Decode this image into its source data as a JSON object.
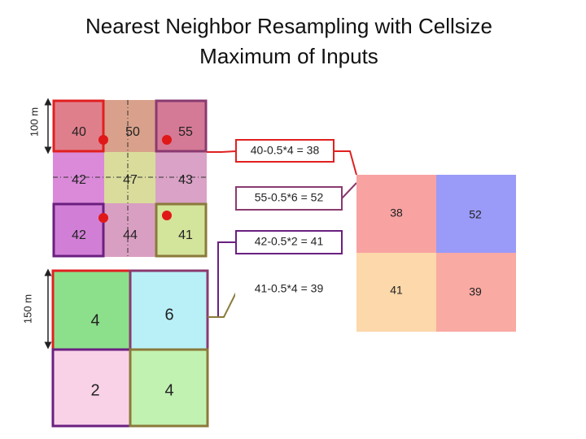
{
  "title": "Nearest Neighbor Resampling with Cellsize Maximum of Inputs",
  "input_grid": {
    "scale_label": "100 m",
    "cells": [
      [
        40,
        50,
        55
      ],
      [
        42,
        47,
        43
      ],
      [
        42,
        44,
        41
      ]
    ]
  },
  "weight_grid": {
    "scale_label": "150 m",
    "cells": [
      [
        4,
        6
      ],
      [
        2,
        4
      ]
    ]
  },
  "formulas": [
    "40-0.5*4 = 38",
    "55-0.5*6 = 52",
    "42-0.5*2 = 41",
    "41-0.5*4 = 39"
  ],
  "output_grid": {
    "cells": [
      [
        38,
        52
      ],
      [
        41,
        39
      ]
    ]
  }
}
